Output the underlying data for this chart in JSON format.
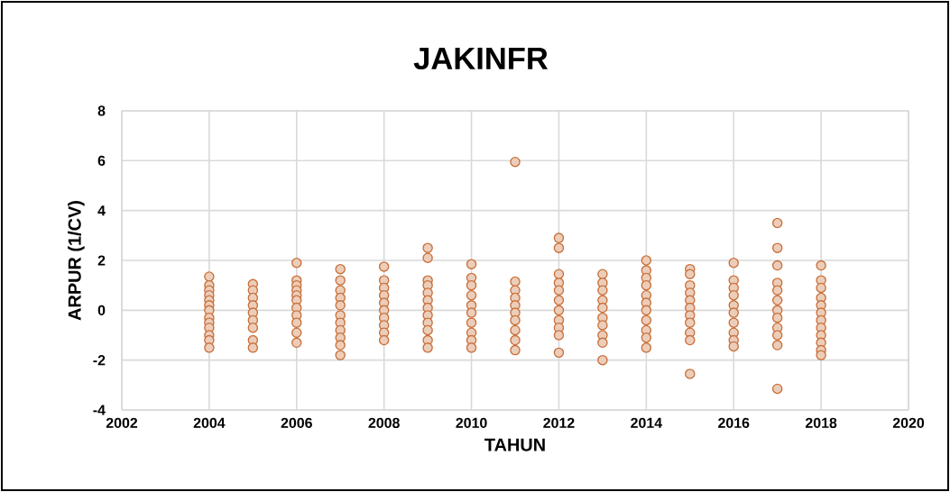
{
  "chart_data": {
    "type": "scatter",
    "title": "JAKINFR",
    "xlabel": "TAHUN",
    "ylabel": "ARPUR (1/CV)",
    "x": [
      2004,
      2004,
      2004,
      2004,
      2004,
      2004,
      2004,
      2004,
      2004,
      2004,
      2004,
      2004,
      2004,
      2005,
      2005,
      2005,
      2005,
      2005,
      2005,
      2005,
      2005,
      2005,
      2006,
      2006,
      2006,
      2006,
      2006,
      2006,
      2006,
      2006,
      2006,
      2006,
      2006,
      2007,
      2007,
      2007,
      2007,
      2007,
      2007,
      2007,
      2007,
      2007,
      2007,
      2007,
      2008,
      2008,
      2008,
      2008,
      2008,
      2008,
      2008,
      2008,
      2008,
      2008,
      2009,
      2009,
      2009,
      2009,
      2009,
      2009,
      2009,
      2009,
      2009,
      2009,
      2009,
      2009,
      2010,
      2010,
      2010,
      2010,
      2010,
      2010,
      2010,
      2010,
      2010,
      2010,
      2011,
      2011,
      2011,
      2011,
      2011,
      2011,
      2011,
      2011,
      2011,
      2011,
      2012,
      2012,
      2012,
      2012,
      2012,
      2012,
      2012,
      2012,
      2012,
      2012,
      2012,
      2013,
      2013,
      2013,
      2013,
      2013,
      2013,
      2013,
      2013,
      2013,
      2013,
      2014,
      2014,
      2014,
      2014,
      2014,
      2014,
      2014,
      2014,
      2014,
      2014,
      2014,
      2015,
      2015,
      2015,
      2015,
      2015,
      2015,
      2015,
      2015,
      2015,
      2015,
      2015,
      2016,
      2016,
      2016,
      2016,
      2016,
      2016,
      2016,
      2016,
      2016,
      2016,
      2017,
      2017,
      2017,
      2017,
      2017,
      2017,
      2017,
      2017,
      2017,
      2017,
      2017,
      2017,
      2018,
      2018,
      2018,
      2018,
      2018,
      2018,
      2018,
      2018,
      2018,
      2018,
      2018,
      2018
    ],
    "values": [
      1.35,
      1.0,
      0.8,
      0.6,
      0.4,
      0.2,
      0,
      -0.3,
      -0.5,
      -0.7,
      -1.0,
      -1.2,
      -1.5,
      1.05,
      0.8,
      0.5,
      0.2,
      -0.1,
      -0.4,
      -0.7,
      -1.2,
      -1.5,
      1.9,
      1.2,
      1.0,
      0.8,
      0.6,
      0.4,
      0.1,
      -0.2,
      -0.5,
      -0.9,
      -1.3,
      1.65,
      1.2,
      0.8,
      0.5,
      0.2,
      -0.2,
      -0.5,
      -0.8,
      -1.1,
      -1.4,
      -1.8,
      1.75,
      1.2,
      0.9,
      0.6,
      0.3,
      0,
      -0.3,
      -0.6,
      -0.9,
      -1.2,
      2.5,
      2.1,
      1.2,
      1.0,
      0.7,
      0.4,
      0.1,
      -0.2,
      -0.5,
      -0.8,
      -1.2,
      -1.5,
      1.85,
      1.3,
      1.0,
      0.6,
      0.2,
      -0.1,
      -0.5,
      -0.9,
      -1.2,
      -1.5,
      5.95,
      1.15,
      0.8,
      0.5,
      0.2,
      -0.1,
      -0.4,
      -0.8,
      -1.2,
      -1.6,
      2.9,
      2.5,
      1.45,
      1.1,
      0.8,
      0.4,
      0,
      -0.4,
      -0.7,
      -1.0,
      -1.7,
      1.45,
      1.1,
      0.8,
      0.4,
      0.1,
      -0.3,
      -0.6,
      -1.0,
      -1.3,
      -2.0,
      2.0,
      1.6,
      1.3,
      1.0,
      0.6,
      0.3,
      0,
      -0.4,
      -0.8,
      -1.1,
      -1.5,
      1.65,
      1.45,
      1.0,
      0.7,
      0.4,
      0.1,
      -0.2,
      -0.5,
      -0.9,
      -1.2,
      -2.55,
      1.9,
      1.2,
      0.9,
      0.6,
      0.2,
      -0.1,
      -0.5,
      -0.9,
      -1.2,
      -1.45,
      3.5,
      2.5,
      1.8,
      1.1,
      0.8,
      0.4,
      0,
      -0.3,
      -0.7,
      -1.0,
      -1.4,
      -3.15,
      1.8,
      1.2,
      0.9,
      0.5,
      0.2,
      -0.1,
      -0.4,
      -0.7,
      -1.0,
      -1.3,
      -1.6,
      -1.8
    ],
    "color": "#c8703a",
    "marker": "circle",
    "grid": true,
    "xlim": [
      2002,
      2020
    ],
    "xticks": [
      2002,
      2004,
      2006,
      2008,
      2010,
      2012,
      2014,
      2016,
      2018,
      2020
    ],
    "ylim": [
      -4,
      8
    ],
    "yticks": [
      -4,
      -2,
      0,
      2,
      4,
      6,
      8
    ]
  }
}
